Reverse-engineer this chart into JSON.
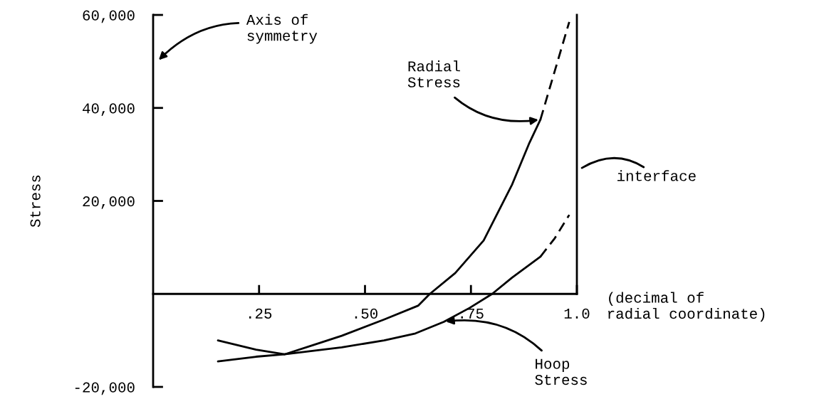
{
  "chart_data": {
    "type": "line",
    "ylabel": "Stress",
    "xlabel": "(decimal of\nradial coordinate)",
    "xlim": [
      0,
      1.0
    ],
    "xticks": [
      {
        "value": 0.25,
        "label": ".25"
      },
      {
        "value": 0.5,
        "label": ".50"
      },
      {
        "value": 0.75,
        "label": ".75"
      },
      {
        "value": 1.0,
        "label": "1.0"
      }
    ],
    "ylim": [
      -20000,
      60000
    ],
    "yticks": [
      {
        "value": -20000,
        "label": "-20,000"
      },
      {
        "value": 20000,
        "label": "20,000"
      },
      {
        "value": 40000,
        "label": "40,000"
      },
      {
        "value": 60000,
        "label": "60,000"
      }
    ],
    "grid": false,
    "legend": false,
    "marker": "none",
    "series": [
      {
        "name": "Radial\nStress",
        "color": "#000000",
        "line_style": "solid",
        "x": [
          0.153,
          0.243,
          0.31,
          0.378,
          0.445,
          0.545,
          0.626,
          0.653,
          0.713,
          0.78,
          0.847,
          0.888,
          0.914
        ],
        "values": [
          -14500,
          -13500,
          -13000,
          -11000,
          -9000,
          -5500,
          -2500,
          0,
          4500,
          11500,
          23500,
          32500,
          37500
        ]
      },
      {
        "color": "#000000",
        "line_style": "dashed",
        "x": [
          0.914,
          0.948,
          0.982
        ],
        "values": [
          37500,
          48000,
          58500
        ]
      },
      {
        "name": "Hoop\nStress",
        "color": "#000000",
        "line_style": "solid",
        "x": [
          0.153,
          0.243,
          0.31,
          0.445,
          0.545,
          0.619,
          0.686,
          0.747,
          0.8,
          0.847,
          0.914
        ],
        "values": [
          -10000,
          -12000,
          -13000,
          -11500,
          -10000,
          -8500,
          -6000,
          -3000,
          0,
          3500,
          8000
        ]
      },
      {
        "color": "#000000",
        "line_style": "dashed",
        "x": [
          0.914,
          0.948,
          0.982
        ],
        "values": [
          8000,
          12000,
          17000
        ]
      }
    ],
    "ref_lines": [
      {
        "axis": "x",
        "value": 1.0,
        "label": "interface",
        "color": "#000000",
        "line_style": "solid"
      }
    ],
    "annotations": [
      "Axis of\nsymmetry"
    ]
  }
}
